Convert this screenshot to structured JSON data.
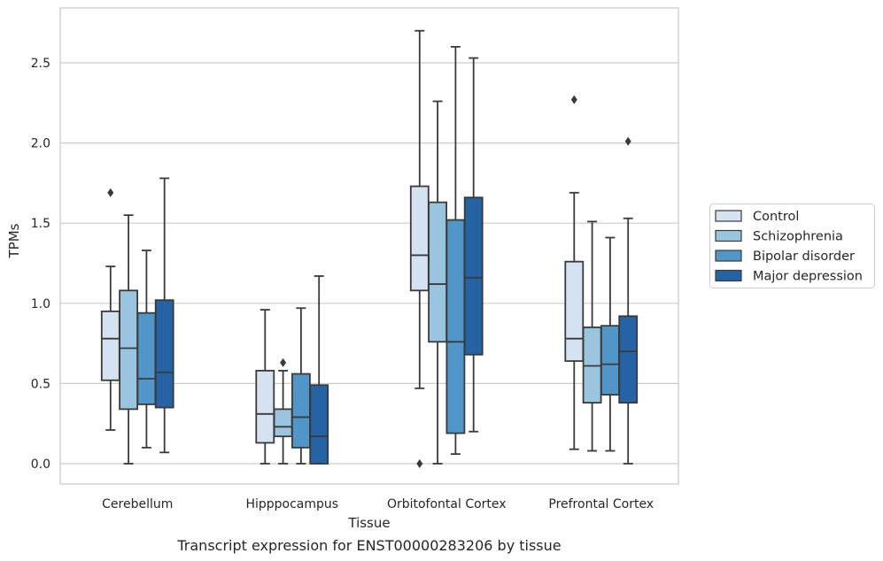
{
  "chart_data": {
    "type": "boxplot",
    "caption": "Transcript expression for ENST00000283206 by tissue",
    "xlabel": "Tissue",
    "ylabel": "TPMs",
    "ylim": [
      -0.13,
      2.85
    ],
    "yticks": [
      0.0,
      0.5,
      1.0,
      1.5,
      2.0,
      2.5
    ],
    "ytick_labels": [
      "0.0",
      "0.5",
      "1.0",
      "1.5",
      "2.0",
      "2.5"
    ],
    "grid": "horizontal",
    "legend_position": "right",
    "categories": [
      "Cerebellum",
      "Hipppocampus",
      "Orbitofontal Cortex",
      "Prefrontal Cortex"
    ],
    "series": [
      {
        "name": "Control",
        "color": "#d4e2f1",
        "boxes": [
          {
            "whisker_low": 0.21,
            "q1": 0.52,
            "median": 0.78,
            "q3": 0.95,
            "whisker_high": 1.23,
            "outliers": [
              1.69
            ]
          },
          {
            "whisker_low": 0.0,
            "q1": 0.13,
            "median": 0.31,
            "q3": 0.58,
            "whisker_high": 0.96,
            "outliers": []
          },
          {
            "whisker_low": 0.47,
            "q1": 1.08,
            "median": 1.3,
            "q3": 1.73,
            "whisker_high": 2.7,
            "outliers": [
              0.0
            ]
          },
          {
            "whisker_low": 0.09,
            "q1": 0.64,
            "median": 0.78,
            "q3": 1.26,
            "whisker_high": 1.69,
            "outliers": [
              2.27
            ]
          }
        ]
      },
      {
        "name": "Schizophrenia",
        "color": "#9ac5df",
        "boxes": [
          {
            "whisker_low": 0.0,
            "q1": 0.34,
            "median": 0.72,
            "q3": 1.08,
            "whisker_high": 1.55,
            "outliers": []
          },
          {
            "whisker_low": 0.0,
            "q1": 0.17,
            "median": 0.23,
            "q3": 0.34,
            "whisker_high": 0.58,
            "outliers": [
              0.63
            ]
          },
          {
            "whisker_low": 0.0,
            "q1": 0.76,
            "median": 1.12,
            "q3": 1.63,
            "whisker_high": 2.26,
            "outliers": []
          },
          {
            "whisker_low": 0.08,
            "q1": 0.38,
            "median": 0.61,
            "q3": 0.85,
            "whisker_high": 1.51,
            "outliers": []
          }
        ]
      },
      {
        "name": "Bipolar disorder",
        "color": "#5196c8",
        "boxes": [
          {
            "whisker_low": 0.1,
            "q1": 0.37,
            "median": 0.53,
            "q3": 0.94,
            "whisker_high": 1.33,
            "outliers": []
          },
          {
            "whisker_low": 0.0,
            "q1": 0.1,
            "median": 0.29,
            "q3": 0.56,
            "whisker_high": 0.97,
            "outliers": []
          },
          {
            "whisker_low": 0.06,
            "q1": 0.19,
            "median": 0.76,
            "q3": 1.52,
            "whisker_high": 2.6,
            "outliers": []
          },
          {
            "whisker_low": 0.08,
            "q1": 0.43,
            "median": 0.62,
            "q3": 0.86,
            "whisker_high": 1.41,
            "outliers": []
          }
        ]
      },
      {
        "name": "Major depression",
        "color": "#2563a4",
        "boxes": [
          {
            "whisker_low": 0.07,
            "q1": 0.35,
            "median": 0.57,
            "q3": 1.02,
            "whisker_high": 1.78,
            "outliers": []
          },
          {
            "whisker_low": 0.0,
            "q1": 0.0,
            "median": 0.17,
            "q3": 0.49,
            "whisker_high": 1.17,
            "outliers": []
          },
          {
            "whisker_low": 0.2,
            "q1": 0.68,
            "median": 1.16,
            "q3": 1.66,
            "whisker_high": 2.53,
            "outliers": []
          },
          {
            "whisker_low": 0.0,
            "q1": 0.38,
            "median": 0.7,
            "q3": 0.92,
            "whisker_high": 1.53,
            "outliers": [
              2.01
            ]
          }
        ]
      }
    ]
  }
}
